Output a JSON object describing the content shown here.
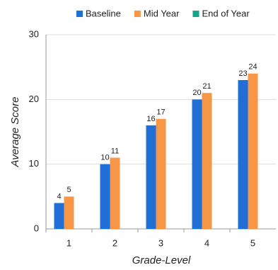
{
  "chart_data": {
    "type": "bar",
    "categories": [
      "1",
      "2",
      "3",
      "4",
      "5"
    ],
    "series": [
      {
        "name": "Baseline",
        "color": "#1f6fd6",
        "values": [
          4,
          10,
          16,
          20,
          23
        ]
      },
      {
        "name": "Mid Year",
        "color": "#f79646",
        "values": [
          5,
          11,
          17,
          21,
          24
        ]
      },
      {
        "name": "End of Year",
        "color": "#17a589",
        "values": [
          null,
          null,
          null,
          null,
          null
        ]
      }
    ],
    "x_label": "Grade-Level",
    "y_label": "Average Score",
    "ylim": [
      0,
      30
    ],
    "yticks": [
      0,
      10,
      20,
      30
    ],
    "grid": true,
    "legend": "top"
  }
}
